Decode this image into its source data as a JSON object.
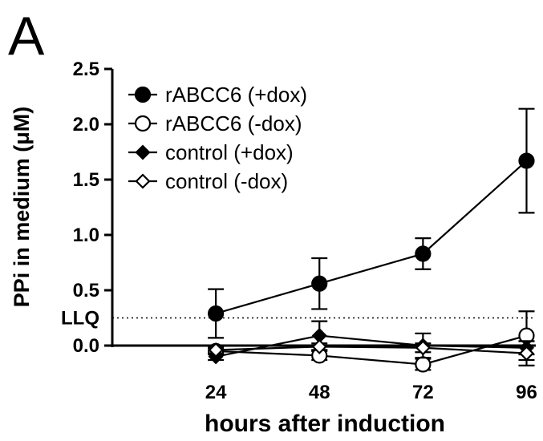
{
  "panel_label": "A",
  "chart_data": {
    "type": "line",
    "title": "",
    "xlabel": "hours after induction",
    "ylabel": "PPi in medium (μM)",
    "x": [
      24,
      48,
      72,
      96
    ],
    "xlim": [
      0,
      100
    ],
    "ylim": [
      0,
      2.5
    ],
    "yticks": [
      0.0,
      0.5,
      1.0,
      1.5,
      2.0,
      2.5
    ],
    "ytick_labels": [
      "0.0",
      "0.5",
      "1.0",
      "1.5",
      "2.0",
      "2.5"
    ],
    "xtick_labels": [
      "24",
      "48",
      "72",
      "96"
    ],
    "grid": false,
    "legend_position": "top-left",
    "reference_line": {
      "label": "LLQ",
      "y": 0.25,
      "style": "dotted"
    },
    "series": [
      {
        "name": "rABCC6 (+dox)",
        "marker": "circle-filled",
        "values": [
          0.29,
          0.56,
          0.83,
          1.67
        ],
        "error": [
          0.22,
          0.23,
          0.14,
          0.47
        ]
      },
      {
        "name": "rABCC6 (-dox)",
        "marker": "circle-open",
        "values": [
          -0.05,
          -0.09,
          -0.17,
          0.09
        ],
        "error": [
          0.03,
          0.04,
          0.05,
          0.22
        ]
      },
      {
        "name": "control (+dox)",
        "marker": "diamond-filled",
        "values": [
          -0.1,
          0.09,
          0.0,
          -0.02
        ],
        "error": [
          0.03,
          0.13,
          0.11,
          0.06
        ]
      },
      {
        "name": "control (-dox)",
        "marker": "diamond-open",
        "values": [
          -0.04,
          -0.01,
          -0.02,
          -0.07
        ],
        "error": [
          0.03,
          0.03,
          0.04,
          0.11
        ]
      }
    ]
  }
}
